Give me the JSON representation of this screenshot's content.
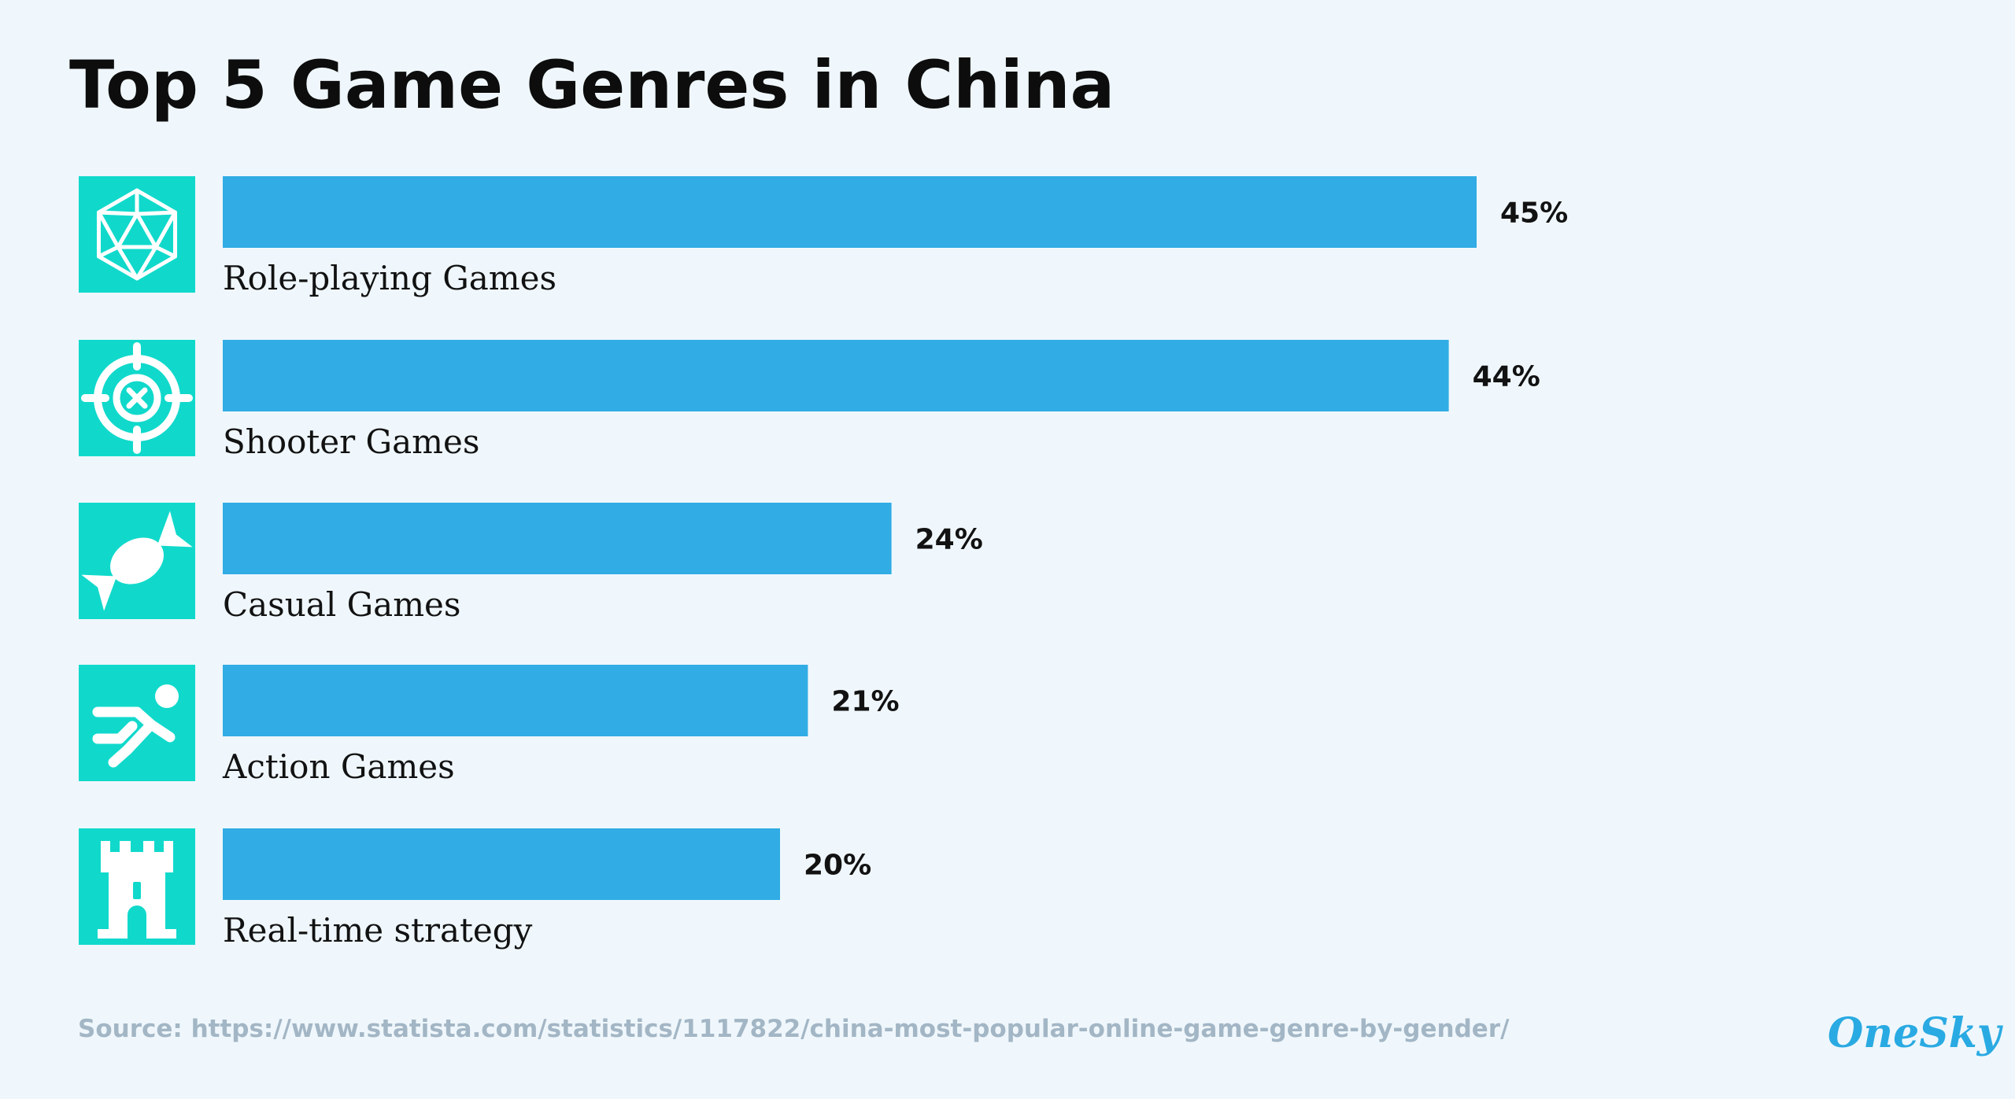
{
  "title": "Top 5 Game Genres in China",
  "source": "Source: https://www.statista.com/statistics/1117822/china-most-popular-online-game-genre-by-gender/",
  "brand": "OneSky",
  "colors": {
    "background": "#eff7fc",
    "bar": "#31ace4",
    "icon_background": "#10d9cb",
    "icon_foreground": "#ffffff",
    "source_text": "#a3b6c5",
    "brand": "#2aaae2"
  },
  "chart_data": {
    "type": "bar",
    "orientation": "horizontal",
    "title": "Top 5 Game Genres in China",
    "categories": [
      "Role-playing Games",
      "Shooter Games",
      "Casual Games",
      "Action Games",
      "Real-time strategy"
    ],
    "values": [
      45,
      44,
      24,
      21,
      20
    ],
    "value_labels": [
      "45%",
      "44%",
      "24%",
      "21%",
      "20%"
    ],
    "icons": [
      "d20-dice-icon",
      "crosshair-icon",
      "candy-icon",
      "running-person-icon",
      "castle-tower-icon"
    ],
    "unit": "%",
    "xlabel": "",
    "ylabel": "",
    "grid": false,
    "legend": "none"
  }
}
